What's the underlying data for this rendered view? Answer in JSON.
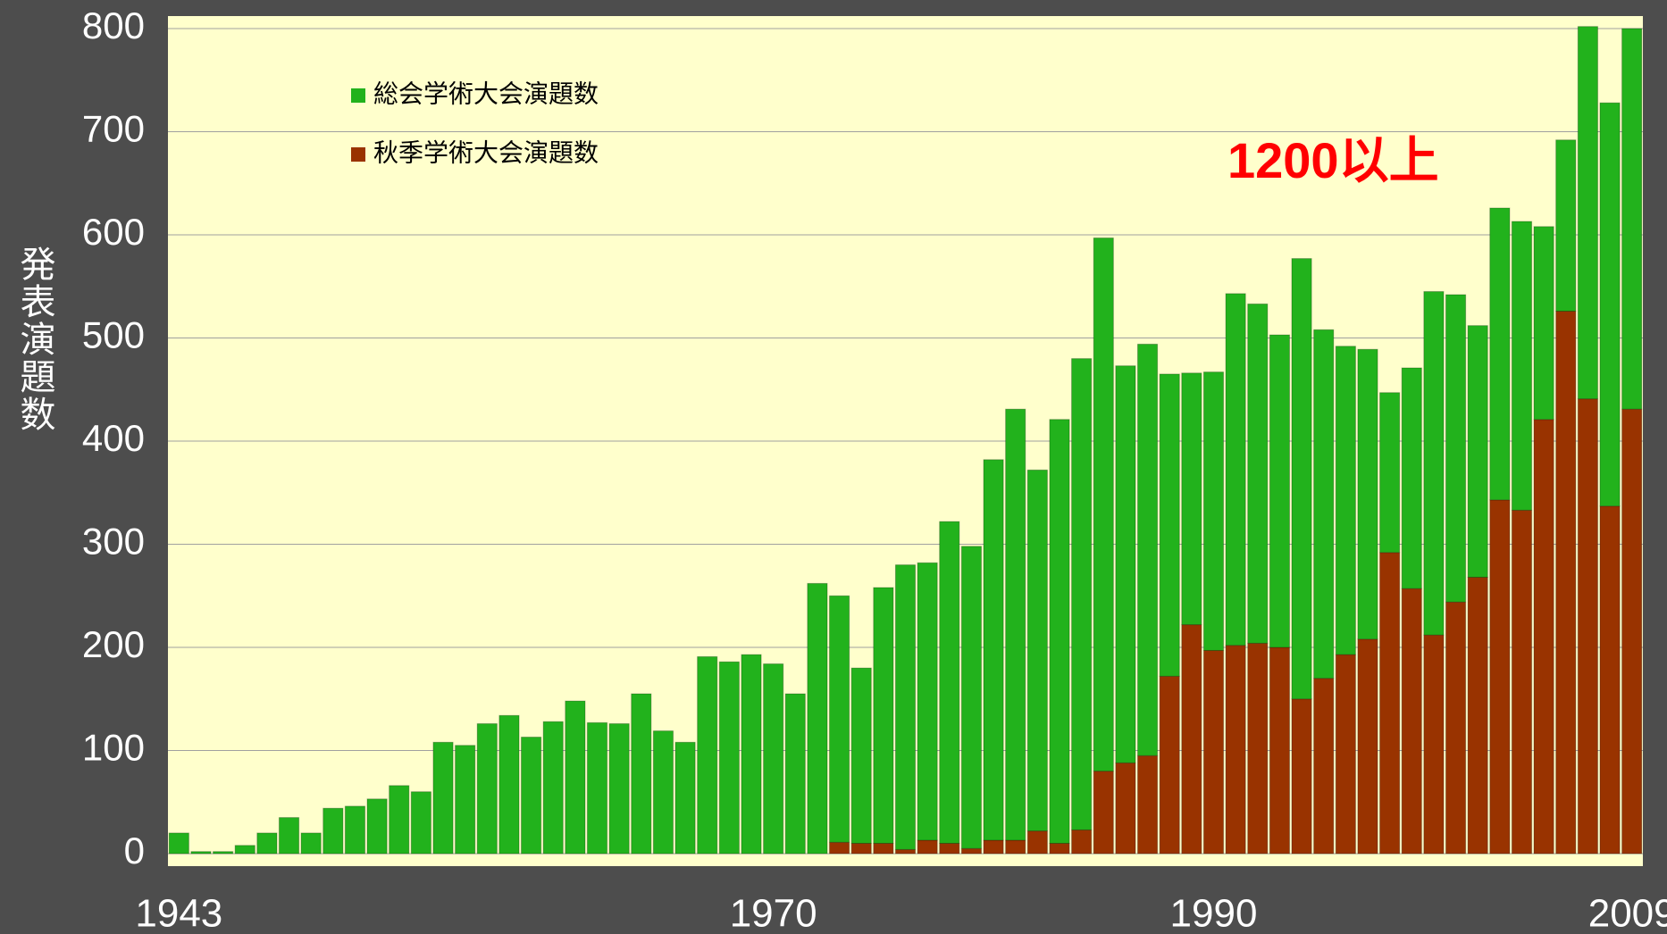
{
  "chart_data": {
    "type": "stacked_bar",
    "y_label": "発表演題数",
    "annotation": "1200以上",
    "categories": [
      "1943",
      null,
      null,
      null,
      null,
      null,
      null,
      null,
      null,
      null,
      null,
      null,
      null,
      null,
      null,
      null,
      null,
      null,
      null,
      null,
      null,
      null,
      null,
      null,
      null,
      null,
      null,
      "1970",
      null,
      null,
      null,
      null,
      null,
      null,
      null,
      null,
      null,
      null,
      null,
      null,
      null,
      null,
      null,
      null,
      null,
      null,
      null,
      "1990",
      null,
      null,
      null,
      null,
      null,
      null,
      null,
      null,
      null,
      null,
      null,
      null,
      null,
      null,
      null,
      null,
      null,
      null,
      "2009"
    ],
    "series": [
      {
        "name": "総会学術大会演題数",
        "color": "#22b21c",
        "values": [
          20,
          2,
          2,
          8,
          20,
          35,
          20,
          44,
          46,
          53,
          66,
          60,
          108,
          105,
          126,
          134,
          113,
          128,
          148,
          127,
          126,
          155,
          119,
          108,
          191,
          186,
          193,
          184,
          155,
          262,
          239,
          170,
          248,
          276,
          269,
          312,
          293,
          369,
          418,
          350,
          411,
          457,
          517,
          385,
          399,
          293,
          244,
          270,
          341,
          329,
          303,
          427,
          338,
          299,
          281,
          155,
          214,
          333,
          298,
          244,
          283,
          280,
          187,
          166,
          361,
          391,
          369
        ]
      },
      {
        "name": "秋季学術大会演題数",
        "color": "#993300",
        "values": [
          0,
          0,
          0,
          0,
          0,
          0,
          0,
          0,
          0,
          0,
          0,
          0,
          0,
          0,
          0,
          0,
          0,
          0,
          0,
          0,
          0,
          0,
          0,
          0,
          0,
          0,
          0,
          0,
          0,
          0,
          11,
          10,
          10,
          4,
          13,
          10,
          5,
          13,
          13,
          22,
          10,
          23,
          80,
          88,
          95,
          172,
          222,
          197,
          202,
          204,
          200,
          150,
          170,
          193,
          208,
          292,
          257,
          212,
          244,
          268,
          343,
          333,
          421,
          526,
          441,
          337,
          431
        ]
      }
    ],
    "ylim": [
      0,
      800
    ],
    "yticks": [
      0,
      100,
      200,
      300,
      400,
      500,
      600,
      700,
      800
    ],
    "grid": true
  }
}
